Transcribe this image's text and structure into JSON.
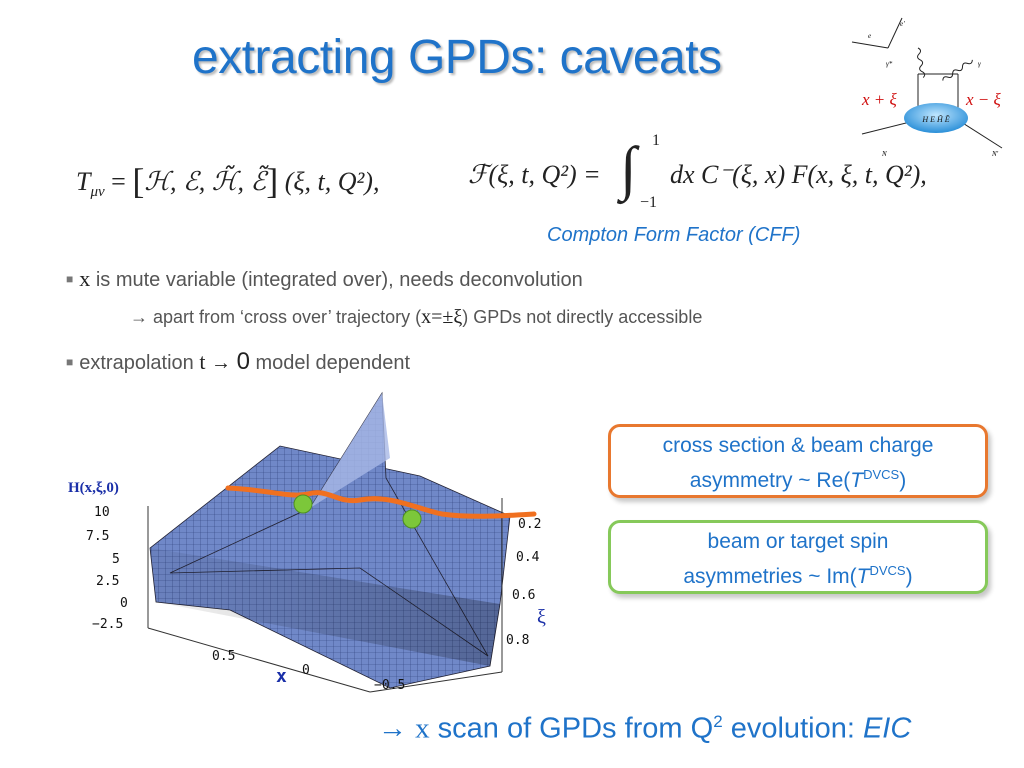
{
  "slide": {
    "title": "extracting GPDs: caveats",
    "formula_left": {
      "T": "T",
      "sub": "μν",
      "eq": "=",
      "bracket_content": "ℋ, ℰ, ℋ̃, ℰ̃",
      "args": "(ξ, t, Q²),"
    },
    "formula_right": {
      "lhs": "ℱ(ξ, t, Q²) =",
      "upper": "1",
      "lower": "−1",
      "integrand": "dx C⁻(ξ, x) F(x, ξ, t, Q²),"
    },
    "cff_label": "Compton Form Factor  (CFF)",
    "bullets": {
      "b1_var": "x",
      "b1_text": "is mute variable (integrated over), needs deconvolution",
      "b1_sub_prefix": "→ apart from ‘cross over’ trajectory (",
      "b1_sub_math": "x=±ξ",
      "b1_sub_suffix": ") GPDs not directly accessible",
      "b2_text": "extrapolation",
      "b2_var": "t",
      "b2_arrow": "→",
      "b2_zero": "0",
      "b2_suffix": "model dependent"
    },
    "diagram": {
      "e": "e",
      "e_prime": "e'",
      "gamma_star": "γ*",
      "gamma": "γ",
      "left_label": "x + ξ",
      "right_label": "x − ξ",
      "blob_label": "H E H̃ Ẽ",
      "N": "N",
      "N_prime": "N'"
    },
    "plot": {
      "zlabel": "H(x,ξ,0)",
      "z_ticks": [
        "10",
        "7.5",
        "5",
        "2.5",
        "0",
        "−2.5"
      ],
      "xi_ticks": [
        "0.2",
        "0.4",
        "0.6",
        "0.8"
      ],
      "xi_label": "ξ",
      "x_ticks": [
        "0.5",
        "0",
        "−0.5"
      ],
      "x_label": "x"
    },
    "box1": {
      "line1": "cross section & beam charge",
      "line2_pre": "asymmetry ~ Re(",
      "T": "T",
      "sup": "DVCS",
      "close": ")"
    },
    "box2": {
      "line1": "beam or target spin",
      "line2_pre": "asymmetries ~ Im(",
      "T": "T",
      "sup": "DVCS",
      "close": ")"
    },
    "bottom": {
      "arrow": "→",
      "x": "x",
      "text": "scan of GPDs from Q",
      "sup": "2",
      "text2": "evolution:",
      "eic": "EIC"
    },
    "colors": {
      "title": "#1f73c9",
      "box1_border": "#e8782f",
      "box2_border": "#86c95a",
      "curve": "#f07020",
      "dots": "#7cc73a",
      "surface": "#6f87c9"
    }
  }
}
